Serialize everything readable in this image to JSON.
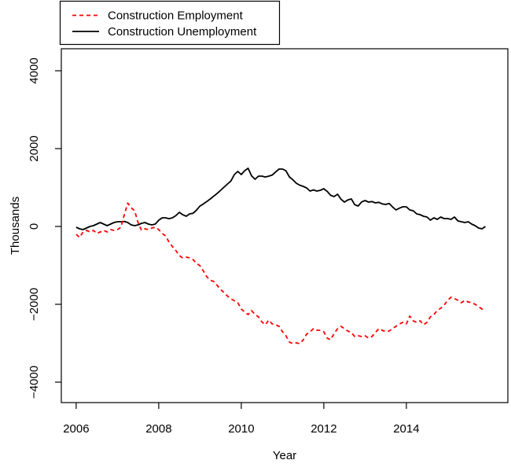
{
  "figure": {
    "background": "#ffffff",
    "frame_color": "#000000"
  },
  "legend": {
    "position": "top-left",
    "items": [
      {
        "label": "Construction Employment",
        "color": "#ff0000",
        "line_style": "dashed"
      },
      {
        "label": "Construction Unemployment",
        "color": "#000000",
        "line_style": "solid"
      }
    ]
  },
  "chart_data": {
    "type": "line",
    "title": "",
    "xlabel": "Year",
    "ylabel": "Thousands",
    "xlim": [
      2005.64,
      2016.46
    ],
    "ylim": [
      -4525,
      4565
    ],
    "grid": false,
    "xticks": [
      2006,
      2008,
      2010,
      2012,
      2014
    ],
    "xtick_labels": [
      "2006",
      "2008",
      "2010",
      "2012",
      "2014"
    ],
    "yticks": [
      -4000,
      -2000,
      0,
      2000,
      4000
    ],
    "ytick_labels": [
      "−4000",
      "−2000",
      "0",
      "2000",
      "4000"
    ],
    "x_start_year": 2006,
    "x_step": "monthly",
    "series": [
      {
        "name": "Construction Unemployment",
        "color": "#000000",
        "style": "solid",
        "values": [
          -20,
          -60,
          -80,
          -40,
          0,
          20,
          60,
          100,
          60,
          20,
          60,
          100,
          120,
          120,
          130,
          100,
          40,
          20,
          40,
          80,
          100,
          60,
          40,
          60,
          160,
          222,
          222,
          200,
          222,
          280,
          364,
          300,
          263,
          323,
          340,
          420,
          525,
          580,
          640,
          707,
          780,
          850,
          929,
          1010,
          1090,
          1170,
          1333,
          1414,
          1333,
          1434,
          1495,
          1300,
          1212,
          1293,
          1293,
          1270,
          1293,
          1320,
          1400,
          1475,
          1475,
          1430,
          1273,
          1200,
          1111,
          1060,
          1030,
          990,
          909,
          940,
          909,
          929,
          970,
          900,
          800,
          768,
          828,
          700,
          626,
          680,
          707,
          560,
          525,
          630,
          667,
          626,
          640,
          606,
          620,
          580,
          566,
          590,
          500,
          424,
          470,
          505,
          505,
          424,
          404,
          323,
          303,
          263,
          242,
          162,
          222,
          182,
          242,
          202,
          202,
          182,
          242,
          141,
          121,
          101,
          121,
          61,
          20,
          -40,
          -60,
          0
        ]
      },
      {
        "name": "Construction Employment",
        "color": "#ff0000",
        "style": "dashed",
        "values": [
          -202,
          -283,
          -141,
          -101,
          -141,
          -101,
          -182,
          -141,
          -101,
          -141,
          -81,
          -101,
          -81,
          -20,
          300,
          600,
          480,
          404,
          100,
          -101,
          -60,
          -81,
          -40,
          -20,
          -81,
          -180,
          -242,
          -400,
          -520,
          -620,
          -750,
          -808,
          -788,
          -808,
          -850,
          -950,
          -1010,
          -1150,
          -1293,
          -1380,
          -1414,
          -1515,
          -1620,
          -1697,
          -1790,
          -1859,
          -1910,
          -1960,
          -2121,
          -2202,
          -2263,
          -2162,
          -2263,
          -2323,
          -2450,
          -2525,
          -2404,
          -2505,
          -2525,
          -2566,
          -2707,
          -2808,
          -2970,
          -3010,
          -2990,
          -3010,
          -2920,
          -2768,
          -2707,
          -2626,
          -2667,
          -2667,
          -2707,
          -2869,
          -2909,
          -2750,
          -2626,
          -2566,
          -2626,
          -2687,
          -2727,
          -2828,
          -2808,
          -2828,
          -2808,
          -2869,
          -2828,
          -2727,
          -2626,
          -2667,
          -2707,
          -2687,
          -2626,
          -2566,
          -2505,
          -2465,
          -2505,
          -2303,
          -2424,
          -2465,
          -2424,
          -2525,
          -2465,
          -2323,
          -2263,
          -2162,
          -2101,
          -2020,
          -1899,
          -1818,
          -1850,
          -1899,
          -1960,
          -1899,
          -1940,
          -1960,
          -2000,
          -2061,
          -2121,
          -2162
        ]
      }
    ]
  }
}
